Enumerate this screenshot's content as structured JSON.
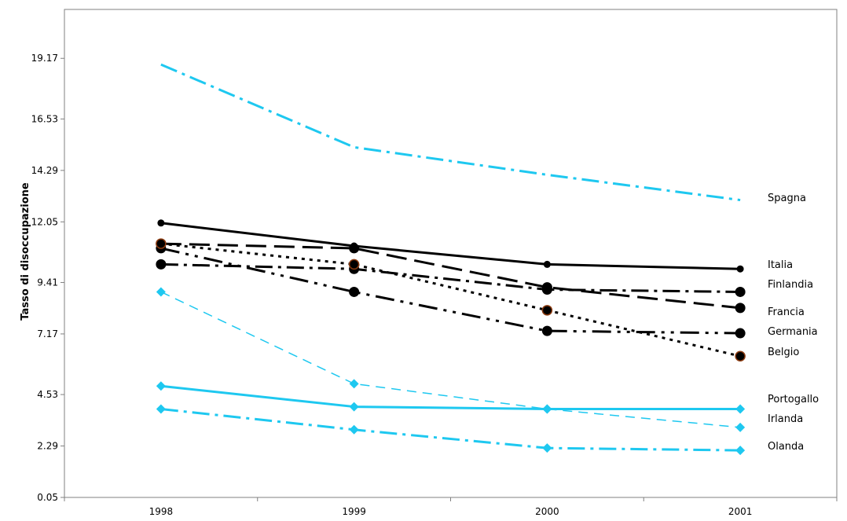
{
  "chart_data": {
    "type": "line",
    "title": "",
    "xlabel": "",
    "ylabel": "Tasso di disoccupazione",
    "categories": [
      "1998",
      "1999",
      "2000",
      "2001"
    ],
    "yticks": [
      "0.05",
      "2.29",
      "4.53",
      "7.17",
      "9.41",
      "12.05",
      "14.29",
      "16.53",
      "19.17"
    ],
    "ylim": [
      0.05,
      21.3
    ],
    "grid": false,
    "legend": "labels at line ends",
    "series": [
      {
        "name": "Spagna",
        "values": [
          18.9,
          15.3,
          14.1,
          13.0
        ],
        "color": "#1ec8f0",
        "dash": "dashdot",
        "marker": "none",
        "width": 3
      },
      {
        "name": "Italia",
        "values": [
          12.0,
          11.0,
          10.2,
          10.0
        ],
        "color": "#000000",
        "dash": "solid",
        "marker": "dot",
        "width": 3
      },
      {
        "name": "Finlandia",
        "values": [
          10.2,
          10.0,
          9.1,
          9.0
        ],
        "color": "#000000",
        "dash": "dashdot",
        "marker": "bigdot",
        "width": 3
      },
      {
        "name": "Francia",
        "values": [
          11.1,
          10.9,
          9.2,
          8.3
        ],
        "color": "#000000",
        "dash": "longdash",
        "marker": "bigdot",
        "width": 3
      },
      {
        "name": "Germania",
        "values": [
          10.9,
          9.0,
          7.3,
          7.2
        ],
        "color": "#000000",
        "dash": "dashdotdot",
        "marker": "bigdot",
        "width": 3
      },
      {
        "name": "Belgio",
        "values": [
          11.1,
          10.2,
          8.2,
          6.2
        ],
        "color": "#000000",
        "dash": "dotted",
        "marker": "browndot",
        "width": 3
      },
      {
        "name": "Portogallo",
        "values": [
          4.9,
          4.0,
          3.9,
          3.9
        ],
        "color": "#1ec8f0",
        "dash": "solid",
        "marker": "diamond",
        "width": 3
      },
      {
        "name": "Irlanda",
        "values": [
          9.0,
          5.0,
          3.9,
          3.1
        ],
        "color": "#1ec8f0",
        "dash": "shortdash",
        "marker": "diamond",
        "width": 1.5
      },
      {
        "name": "Olanda",
        "values": [
          3.9,
          3.0,
          2.2,
          2.1
        ],
        "color": "#1ec8f0",
        "dash": "dashdot",
        "marker": "diamond",
        "width": 3
      }
    ]
  }
}
